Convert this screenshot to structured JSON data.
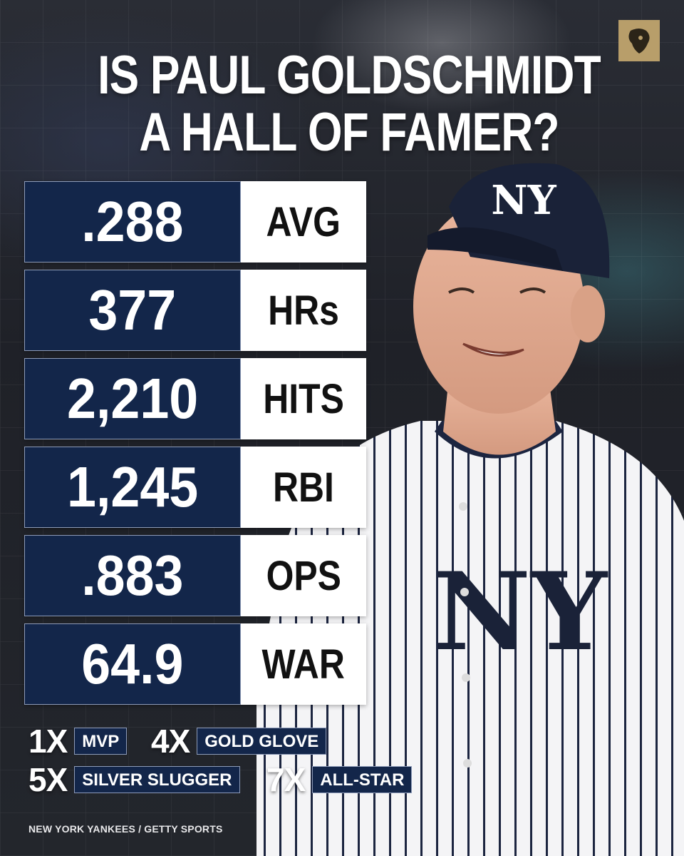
{
  "title": {
    "line1": "IS PAUL GOLDSCHMIDT",
    "line2": "A HALL OF FAMER?"
  },
  "logo": {
    "icon": "lion-head-icon",
    "color": "#b89e6a"
  },
  "stats": [
    {
      "value": ".288",
      "label": "AVG"
    },
    {
      "value": "377",
      "label": "HRs"
    },
    {
      "value": "2,210",
      "label": "HITS"
    },
    {
      "value": "1,245",
      "label": "RBI"
    },
    {
      "value": ".883",
      "label": "OPS"
    },
    {
      "value": "64.9",
      "label": "WAR"
    }
  ],
  "awards": [
    {
      "count": "1X",
      "name": "MVP"
    },
    {
      "count": "4X",
      "name": "GOLD GLOVE"
    },
    {
      "count": "5X",
      "name": "SILVER SLUGGER"
    },
    {
      "count": "7X",
      "name": "ALL-STAR"
    }
  ],
  "photo": {
    "subject": "player-photo",
    "cap_logo": "NY",
    "jersey_logo": "NY"
  },
  "credit": "NEW YORK YANKEES / GETTY SPORTS",
  "colors": {
    "navy": "#13264a",
    "white": "#ffffff",
    "gold": "#b89e6a"
  }
}
